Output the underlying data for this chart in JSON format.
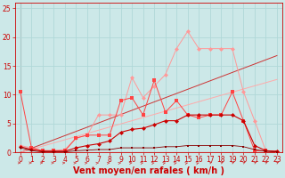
{
  "xlabel": "Vent moyen/en rafales ( km/h )",
  "xlim": [
    -0.5,
    23.5
  ],
  "ylim": [
    0,
    26
  ],
  "yticks": [
    0,
    5,
    10,
    15,
    20,
    25
  ],
  "xticks": [
    0,
    1,
    2,
    3,
    4,
    5,
    6,
    7,
    8,
    9,
    10,
    11,
    12,
    13,
    14,
    15,
    16,
    17,
    18,
    19,
    20,
    21,
    22,
    23
  ],
  "bg_color": "#cce8e8",
  "grid_color": "#b0d8d8",
  "line_pink_x": [
    0,
    1,
    2,
    3,
    4,
    5,
    6,
    7,
    8,
    9,
    10,
    11,
    12,
    13,
    14,
    15,
    16,
    17,
    18,
    19,
    20,
    21,
    22,
    23
  ],
  "line_pink_y": [
    1.2,
    0.8,
    0.3,
    0.3,
    0.5,
    2.5,
    3.0,
    6.5,
    6.5,
    6.5,
    13.0,
    9.5,
    11.5,
    13.5,
    18.0,
    21.0,
    18.0,
    18.0,
    18.0,
    18.0,
    10.5,
    5.5,
    0.3,
    0.2
  ],
  "line_pink_color": "#ff9999",
  "line_medred_x": [
    0,
    1,
    2,
    3,
    4,
    5,
    6,
    7,
    8,
    9,
    10,
    11,
    12,
    13,
    14,
    15,
    16,
    17,
    18,
    19,
    20,
    21,
    22,
    23
  ],
  "line_medred_y": [
    10.5,
    0.8,
    0.3,
    0.3,
    0.3,
    2.5,
    3.0,
    3.0,
    3.0,
    9.0,
    9.5,
    6.5,
    12.5,
    7.0,
    9.0,
    6.5,
    6.0,
    6.5,
    6.5,
    10.5,
    5.5,
    0.3,
    0.3,
    0.1
  ],
  "line_medred_color": "#ff4444",
  "line_darkred_x": [
    0,
    1,
    2,
    3,
    4,
    5,
    6,
    7,
    8,
    9,
    10,
    11,
    12,
    13,
    14,
    15,
    16,
    17,
    18,
    19,
    20,
    21,
    22,
    23
  ],
  "line_darkred_y": [
    1.0,
    0.5,
    0.2,
    0.2,
    0.2,
    0.8,
    1.2,
    1.5,
    2.0,
    3.5,
    4.0,
    4.2,
    4.8,
    5.5,
    5.5,
    6.5,
    6.5,
    6.5,
    6.5,
    6.5,
    5.5,
    1.2,
    0.3,
    0.2
  ],
  "line_darkred_color": "#cc0000",
  "line_vdark_x": [
    0,
    1,
    2,
    3,
    4,
    5,
    6,
    7,
    8,
    9,
    10,
    11,
    12,
    13,
    14,
    15,
    16,
    17,
    18,
    19,
    20,
    21,
    22,
    23
  ],
  "line_vdark_y": [
    0.8,
    0.3,
    0.1,
    0.1,
    0.1,
    0.3,
    0.4,
    0.5,
    0.5,
    0.8,
    0.8,
    0.8,
    0.8,
    1.0,
    1.0,
    1.2,
    1.2,
    1.2,
    1.2,
    1.2,
    1.0,
    0.5,
    0.2,
    0.1
  ],
  "line_vdark_color": "#880000",
  "diag1_color": "#cc3333",
  "diag1_slope": 0.73,
  "diag2_color": "#ffaaaa",
  "diag2_slope": 0.55,
  "xlabel_color": "#cc0000",
  "xlabel_fontsize": 7,
  "tick_fontsize": 5.5,
  "tick_color": "#cc0000",
  "spine_color": "#cc0000",
  "marker_size": 2.5
}
